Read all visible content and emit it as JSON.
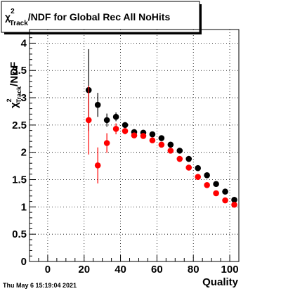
{
  "title_prefix": "χ",
  "title_sup": "2",
  "title_sub": "Track",
  "title_suffix": "/NDF for Global Rec All NoHits",
  "timestamp": "Thu May  6 15:19:04 2021",
  "chart_data": {
    "type": "scatter",
    "title": "χ²Track/NDF for Global Rec All NoHits",
    "xlabel": "Quality",
    "ylabel_prefix": "χ",
    "ylabel_sup": "2",
    "ylabel_sub": "Track",
    "ylabel_suffix": "/NDF",
    "xlim": [
      -10,
      105
    ],
    "ylim": [
      0,
      4.25
    ],
    "x_ticks": [
      "0",
      "20",
      "40",
      "60",
      "80",
      "100"
    ],
    "x_tick_values": [
      0,
      20,
      40,
      60,
      80,
      100
    ],
    "y_ticks": [
      "0",
      "0.5",
      "1",
      "1.5",
      "2",
      "2.5",
      "3",
      "3.5",
      "4"
    ],
    "y_tick_values": [
      0,
      0.5,
      1,
      1.5,
      2,
      2.5,
      3,
      3.5,
      4
    ],
    "grid": true,
    "series": [
      {
        "color": "#000000",
        "x": [
          22.5,
          27.5,
          32.5,
          37.5,
          42.5,
          47.5,
          52.5,
          57.5,
          62.5,
          67.5,
          72.5,
          77.5,
          82.5,
          87.5,
          92.5,
          97.5,
          102.5
        ],
        "y": [
          3.14,
          2.87,
          2.59,
          2.65,
          2.5,
          2.37,
          2.36,
          2.33,
          2.26,
          2.14,
          2.03,
          1.88,
          1.71,
          1.58,
          1.42,
          1.28,
          1.13
        ],
        "err": [
          0.75,
          0.22,
          0.12,
          0.08,
          0.05,
          0.04,
          0.03,
          0.03,
          0.03,
          0.03,
          0.03,
          0.03,
          0.03,
          0.03,
          0.03,
          0.03,
          0.04
        ]
      },
      {
        "color": "#ff0000",
        "x": [
          22.5,
          27.5,
          32.5,
          37.5,
          42.5,
          47.5,
          52.5,
          57.5,
          62.5,
          67.5,
          72.5,
          77.5,
          82.5,
          87.5,
          92.5,
          97.5,
          102.5
        ],
        "y": [
          2.59,
          1.76,
          2.17,
          2.43,
          2.39,
          2.31,
          2.3,
          2.22,
          2.14,
          2.03,
          1.88,
          1.72,
          1.55,
          1.4,
          1.25,
          1.12,
          1.04
        ],
        "err": [
          0.63,
          0.33,
          0.18,
          0.1,
          0.06,
          0.05,
          0.04,
          0.04,
          0.04,
          0.04,
          0.04,
          0.03,
          0.03,
          0.03,
          0.03,
          0.03,
          0.03
        ]
      }
    ]
  }
}
